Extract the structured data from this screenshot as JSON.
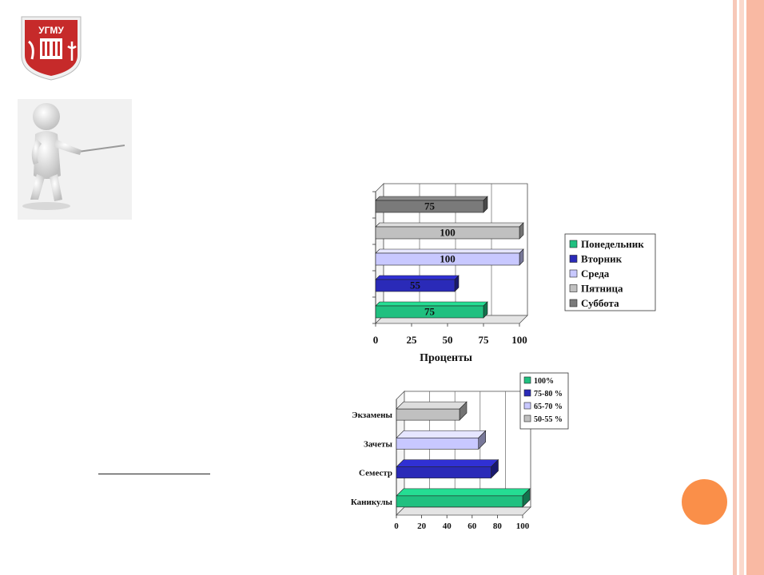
{
  "logo": {
    "text": "УГМУ",
    "colors": {
      "shield": "#c62a2a",
      "border": "#f0f0f0"
    }
  },
  "decor": {
    "accent": "#fa8f49",
    "stripes": [
      "#f7c8b8",
      "#fbd9cc",
      "#f9b9a3"
    ]
  },
  "chart_data": [
    {
      "type": "bar",
      "orientation": "horizontal",
      "categories": [
        "Понедельник",
        "Вторник",
        "Среда",
        "Пятница",
        "Суббота"
      ],
      "values": [
        75,
        55,
        100,
        100,
        75
      ],
      "xlabel": "Проценты",
      "xlim": [
        0,
        100
      ],
      "xticks": [
        "0",
        "25",
        "50",
        "75",
        "100"
      ],
      "grid": true,
      "legend": "right",
      "colors": [
        "#20c080",
        "#2a2ab8",
        "#c8c8ff",
        "#c0c0c0",
        "#7a7a7a"
      ],
      "data_labels": [
        "75",
        "55",
        "100",
        "100",
        "75"
      ]
    },
    {
      "type": "bar",
      "orientation": "horizontal",
      "categories": [
        "Каникулы",
        "Семестр",
        "Зачеты",
        "Экзамены"
      ],
      "values": [
        100,
        75,
        65,
        50
      ],
      "xlim": [
        0,
        100
      ],
      "xticks": [
        "0",
        "20",
        "40",
        "60",
        "80",
        "100"
      ],
      "grid": true,
      "legend": "top-right",
      "legend_entries": [
        "100%",
        "75-80 %",
        "65-70 %",
        "50-55 %"
      ],
      "colors": [
        "#20c080",
        "#2a2ab8",
        "#c8c8ff",
        "#c0c0c0"
      ]
    }
  ]
}
